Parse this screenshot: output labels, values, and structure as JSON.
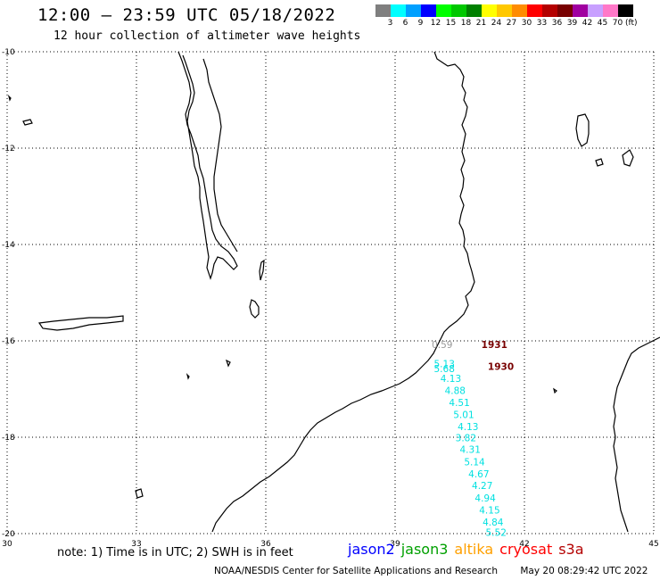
{
  "title": "12:00 – 23:59 UTC 05/18/2022",
  "subtitle": "12 hour collection of altimeter wave heights",
  "legend": {
    "colors": [
      "#7f7f7f",
      "#00ffff",
      "#00a0ff",
      "#0000ff",
      "#00ff00",
      "#00c800",
      "#008000",
      "#ffff00",
      "#ffc800",
      "#ff8c00",
      "#ff0000",
      "#b40000",
      "#780000",
      "#a000a0",
      "#c8a0ff",
      "#ff78c8",
      "#000000"
    ],
    "labels": [
      "3",
      "6",
      "9",
      "12",
      "15",
      "18",
      "21",
      "24",
      "27",
      "30",
      "33",
      "36",
      "39",
      "42",
      "45",
      "70"
    ],
    "unit": "(ft)"
  },
  "axes": {
    "lon_ticks": [
      "30",
      "33",
      "36",
      "39",
      "42",
      "45"
    ],
    "lat_ticks": [
      "-10",
      "-12",
      "-14",
      "-16",
      "-18",
      "-20"
    ],
    "lon_range": [
      30,
      45
    ],
    "lat_range": [
      -20,
      -10
    ]
  },
  "observations": [
    {
      "text": "0.59",
      "color": "#999999",
      "lon": 39.85,
      "lat": -16.15
    },
    {
      "text": "1931",
      "color": "#780000",
      "lon": 41.0,
      "lat": -16.15
    },
    {
      "text": "5.13",
      "color": "#00e0e0",
      "lon": 39.9,
      "lat": -16.55
    },
    {
      "text": "5.68",
      "color": "#00e0e0",
      "lon": 39.9,
      "lat": -16.65
    },
    {
      "text": "1930",
      "color": "#780000",
      "lon": 41.15,
      "lat": -16.6
    },
    {
      "text": "4.13",
      "color": "#00e0e0",
      "lon": 40.05,
      "lat": -16.85
    },
    {
      "text": "4.88",
      "color": "#00e0e0",
      "lon": 40.15,
      "lat": -17.1
    },
    {
      "text": "4.51",
      "color": "#00e0e0",
      "lon": 40.25,
      "lat": -17.35
    },
    {
      "text": "5.01",
      "color": "#00e0e0",
      "lon": 40.35,
      "lat": -17.6
    },
    {
      "text": "4.13",
      "color": "#00e0e0",
      "lon": 40.45,
      "lat": -17.85
    },
    {
      "text": "3.82",
      "color": "#00e0e0",
      "lon": 40.4,
      "lat": -18.08
    },
    {
      "text": "4.31",
      "color": "#00e0e0",
      "lon": 40.5,
      "lat": -18.32
    },
    {
      "text": "5.14",
      "color": "#00e0e0",
      "lon": 40.6,
      "lat": -18.58
    },
    {
      "text": "4.67",
      "color": "#00e0e0",
      "lon": 40.7,
      "lat": -18.83
    },
    {
      "text": "4.27",
      "color": "#00e0e0",
      "lon": 40.78,
      "lat": -19.07
    },
    {
      "text": "4.94",
      "color": "#00e0e0",
      "lon": 40.85,
      "lat": -19.33
    },
    {
      "text": "4.15",
      "color": "#00e0e0",
      "lon": 40.95,
      "lat": -19.58
    },
    {
      "text": "4.84",
      "color": "#00e0e0",
      "lon": 41.03,
      "lat": -19.83
    },
    {
      "text": "5.52",
      "color": "#00e0e0",
      "lon": 41.1,
      "lat": -20.05
    }
  ],
  "note": "note: 1) Time is in UTC; 2) SWH is in feet",
  "satellites": [
    {
      "name": "jason2",
      "color": "#0000ff"
    },
    {
      "name": "jason3",
      "color": "#00a000"
    },
    {
      "name": "altika",
      "color": "#ffa000"
    },
    {
      "name": "cryosat",
      "color": "#ff0000"
    },
    {
      "name": "s3a",
      "color": "#b40000"
    }
  ],
  "footer": {
    "credit": "NOAA/NESDIS Center for Satellite Applications and Research",
    "timestamp": "May 20 08:29:42 UTC 2022"
  }
}
